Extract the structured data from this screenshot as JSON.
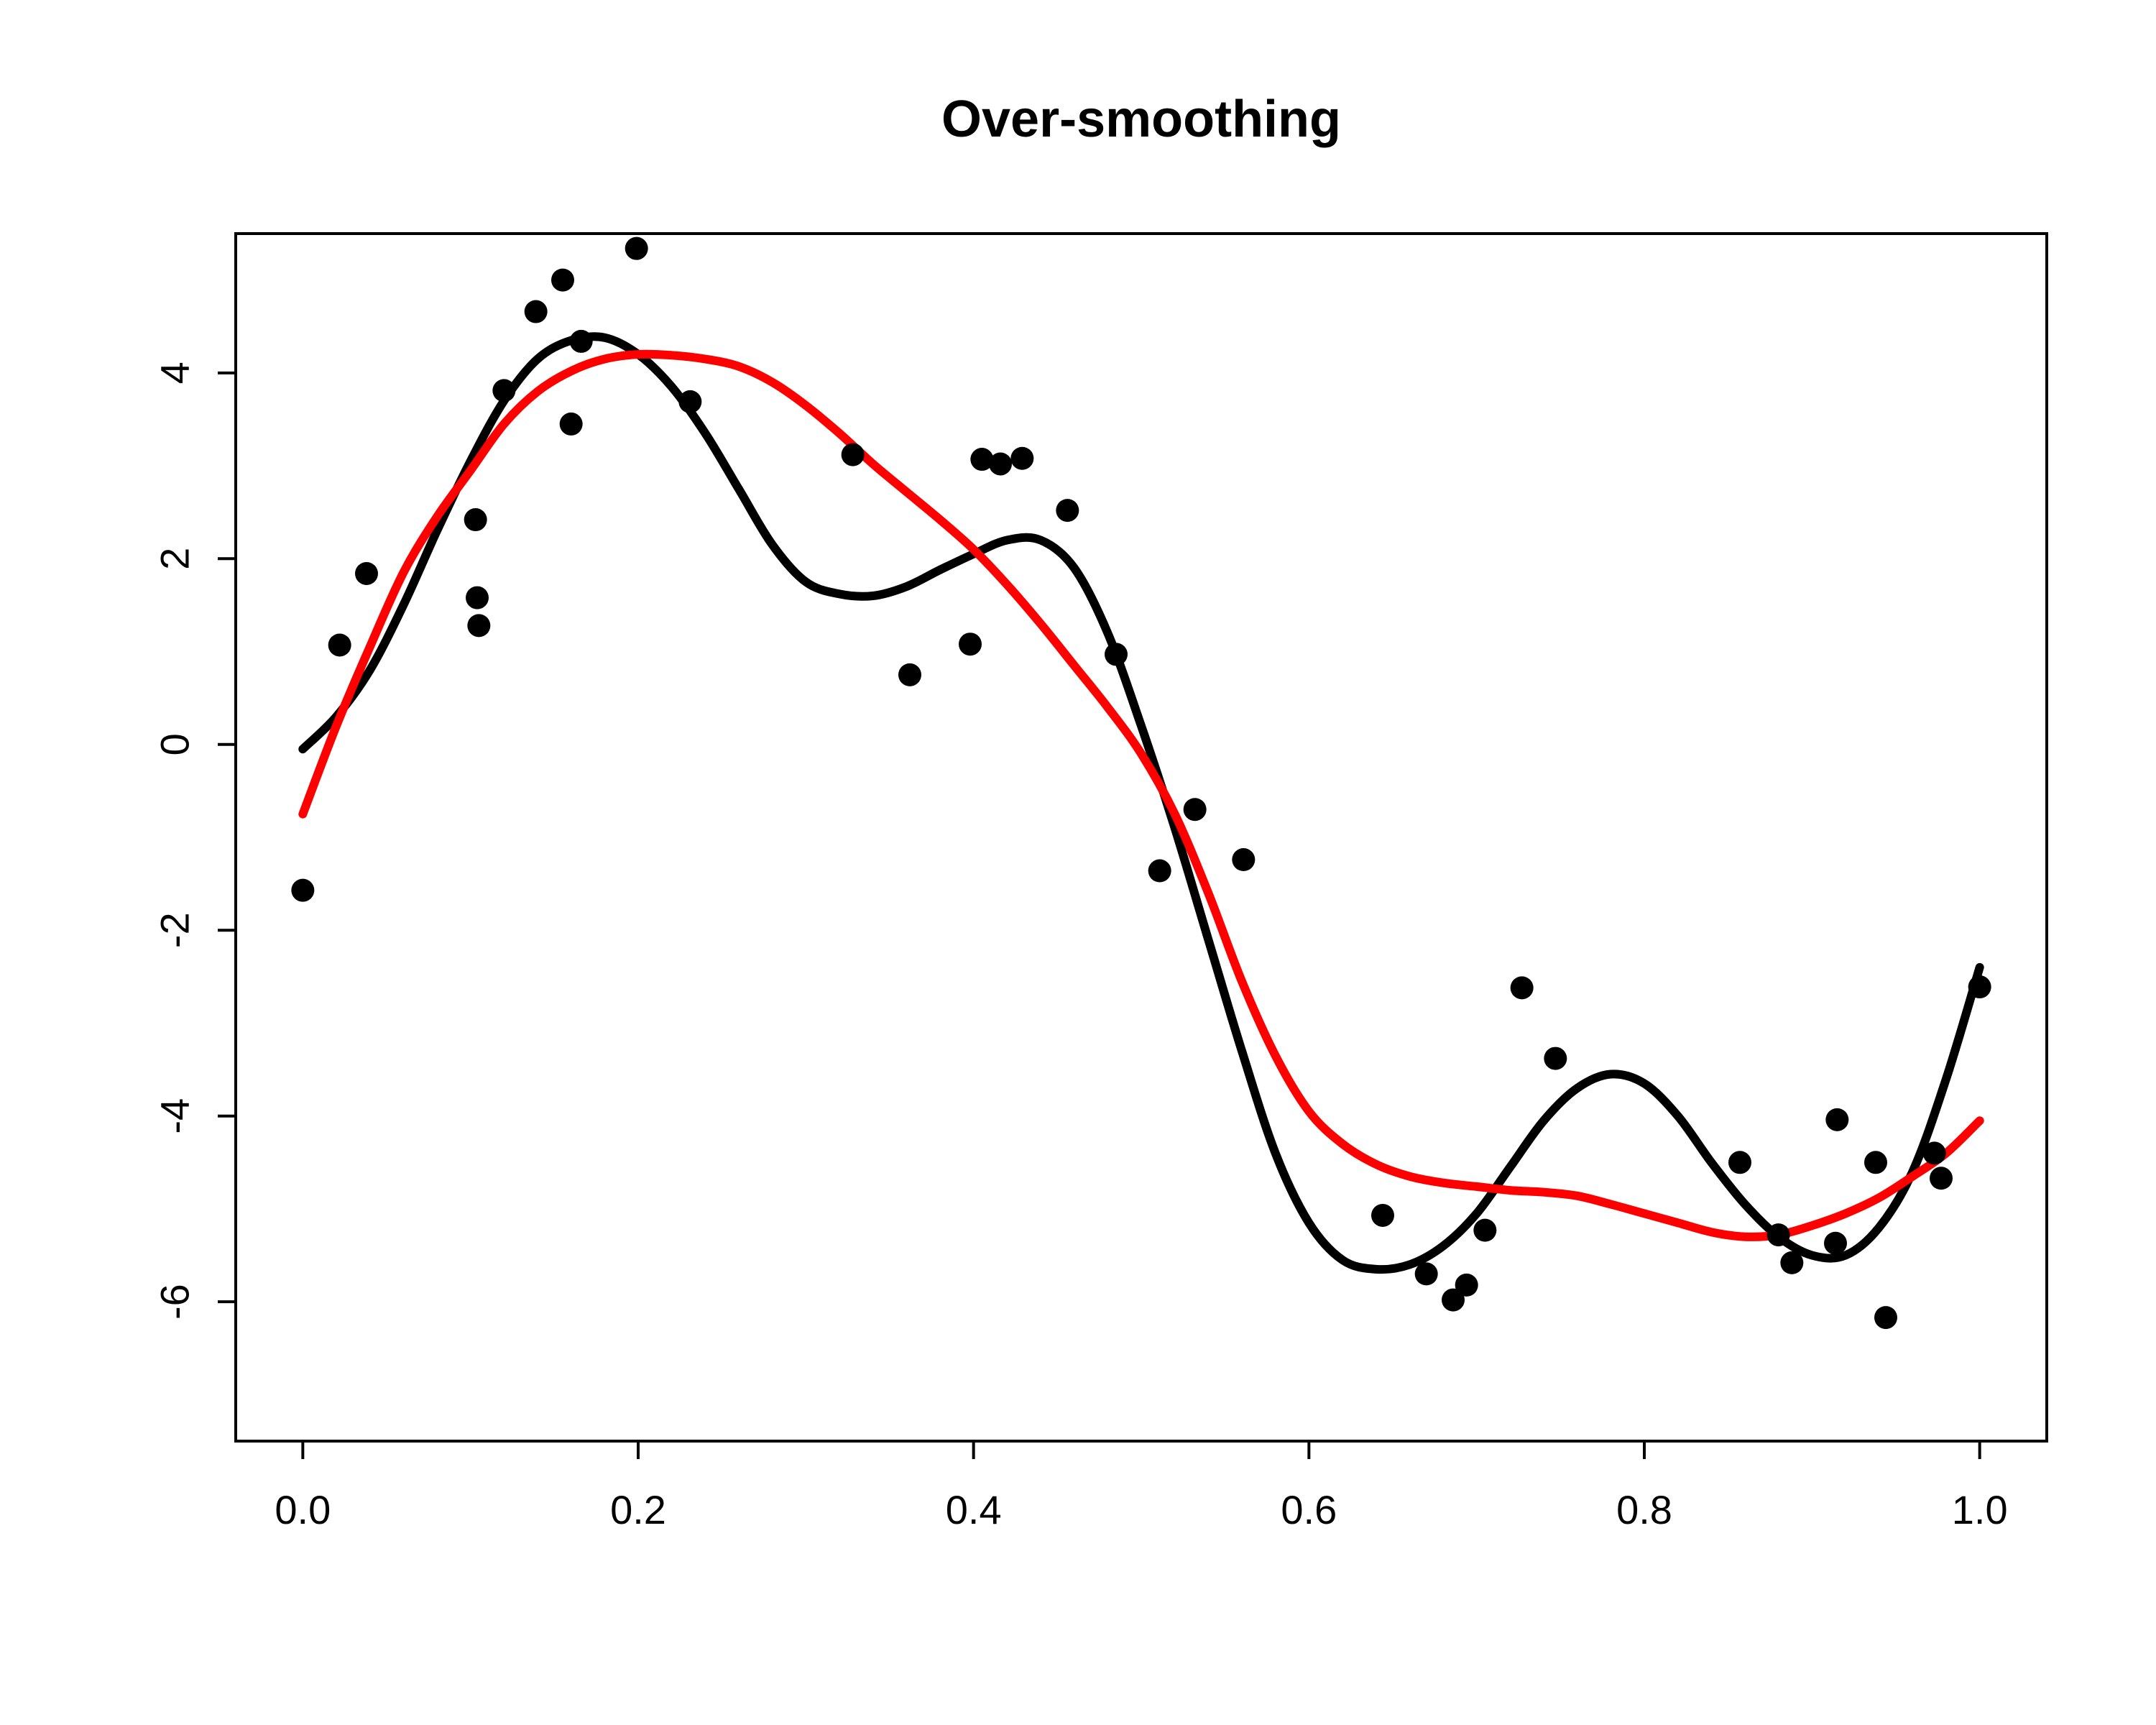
{
  "chart_data": {
    "type": "scatter",
    "title": "Over-smoothing",
    "xlabel": "",
    "ylabel": "",
    "xlim": [
      -0.04,
      1.04
    ],
    "ylim": [
      -7.5,
      5.5
    ],
    "x_ticks": [
      0.0,
      0.2,
      0.4,
      0.6,
      0.8,
      1.0
    ],
    "x_tick_labels": [
      "0.0",
      "0.2",
      "0.4",
      "0.6",
      "0.8",
      "1.0"
    ],
    "y_ticks": [
      -6,
      -4,
      -2,
      0,
      2,
      4
    ],
    "y_tick_labels": [
      "-6",
      "-4",
      "-2",
      "0",
      "2",
      "4"
    ],
    "grid": false,
    "colors": {
      "points": "#000000",
      "flexible_fit": "#000000",
      "smooth_fit": "#ff0000"
    },
    "points": {
      "x": [
        0.0,
        0.022,
        0.038,
        0.103,
        0.104,
        0.105,
        0.12,
        0.139,
        0.155,
        0.16,
        0.166,
        0.199,
        0.231,
        0.328,
        0.362,
        0.398,
        0.405,
        0.416,
        0.429,
        0.456,
        0.485,
        0.511,
        0.532,
        0.561,
        0.644,
        0.67,
        0.686,
        0.694,
        0.705,
        0.727,
        0.747,
        0.857,
        0.88,
        0.888,
        0.914,
        0.915,
        0.938,
        0.944,
        0.973,
        0.977,
        1.0
      ],
      "y": [
        -1.57,
        1.07,
        1.84,
        2.42,
        1.58,
        1.28,
        3.81,
        4.66,
        5.0,
        3.45,
        4.34,
        5.34,
        3.69,
        3.12,
        0.75,
        1.08,
        3.07,
        3.02,
        3.08,
        2.52,
        0.97,
        -1.36,
        -0.7,
        -1.24,
        -5.07,
        -5.7,
        -5.98,
        -5.82,
        -5.23,
        -2.62,
        -3.38,
        -4.5,
        -5.28,
        -5.58,
        -5.37,
        -4.04,
        -4.5,
        -6.17,
        -4.4,
        -4.67,
        -2.61
      ]
    },
    "series": [
      {
        "x": [
          0.0,
          0.02,
          0.04,
          0.06,
          0.08,
          0.1,
          0.12,
          0.14,
          0.16,
          0.18,
          0.2,
          0.22,
          0.24,
          0.26,
          0.28,
          0.3,
          0.32,
          0.34,
          0.36,
          0.38,
          0.4,
          0.42,
          0.44,
          0.46,
          0.48,
          0.5,
          0.52,
          0.54,
          0.56,
          0.58,
          0.6,
          0.62,
          0.64,
          0.66,
          0.68,
          0.7,
          0.72,
          0.74,
          0.76,
          0.78,
          0.8,
          0.82,
          0.84,
          0.86,
          0.88,
          0.9,
          0.92,
          0.94,
          0.96,
          0.98,
          1.0
        ],
        "y": [
          -0.05,
          0.3,
          0.8,
          1.5,
          2.3,
          3.05,
          3.7,
          4.15,
          4.35,
          4.38,
          4.2,
          3.85,
          3.35,
          2.75,
          2.15,
          1.75,
          1.62,
          1.6,
          1.7,
          1.88,
          2.05,
          2.2,
          2.2,
          1.9,
          1.2,
          0.2,
          -0.9,
          -2.1,
          -3.3,
          -4.4,
          -5.15,
          -5.55,
          -5.65,
          -5.6,
          -5.4,
          -5.05,
          -4.55,
          -4.05,
          -3.7,
          -3.55,
          -3.65,
          -4.0,
          -4.5,
          -4.95,
          -5.3,
          -5.5,
          -5.5,
          -5.2,
          -4.6,
          -3.6,
          -2.4
        ]
      },
      {
        "x": [
          0.0,
          0.02,
          0.04,
          0.06,
          0.08,
          0.1,
          0.12,
          0.14,
          0.16,
          0.18,
          0.2,
          0.22,
          0.24,
          0.26,
          0.28,
          0.3,
          0.32,
          0.34,
          0.36,
          0.38,
          0.4,
          0.42,
          0.44,
          0.46,
          0.48,
          0.5,
          0.52,
          0.54,
          0.56,
          0.58,
          0.6,
          0.62,
          0.64,
          0.66,
          0.68,
          0.7,
          0.72,
          0.74,
          0.76,
          0.78,
          0.8,
          0.82,
          0.84,
          0.86,
          0.88,
          0.9,
          0.92,
          0.94,
          0.96,
          0.98,
          1.0
        ],
        "y": [
          -0.75,
          0.2,
          1.05,
          1.85,
          2.45,
          2.95,
          3.45,
          3.8,
          4.02,
          4.15,
          4.2,
          4.19,
          4.15,
          4.07,
          3.9,
          3.65,
          3.35,
          3.02,
          2.72,
          2.42,
          2.1,
          1.72,
          1.3,
          0.85,
          0.4,
          -0.1,
          -0.75,
          -1.6,
          -2.55,
          -3.35,
          -3.95,
          -4.3,
          -4.52,
          -4.65,
          -4.72,
          -4.76,
          -4.8,
          -4.82,
          -4.86,
          -4.95,
          -5.05,
          -5.15,
          -5.25,
          -5.3,
          -5.28,
          -5.18,
          -5.05,
          -4.88,
          -4.65,
          -4.4,
          -4.05
        ]
      }
    ]
  }
}
